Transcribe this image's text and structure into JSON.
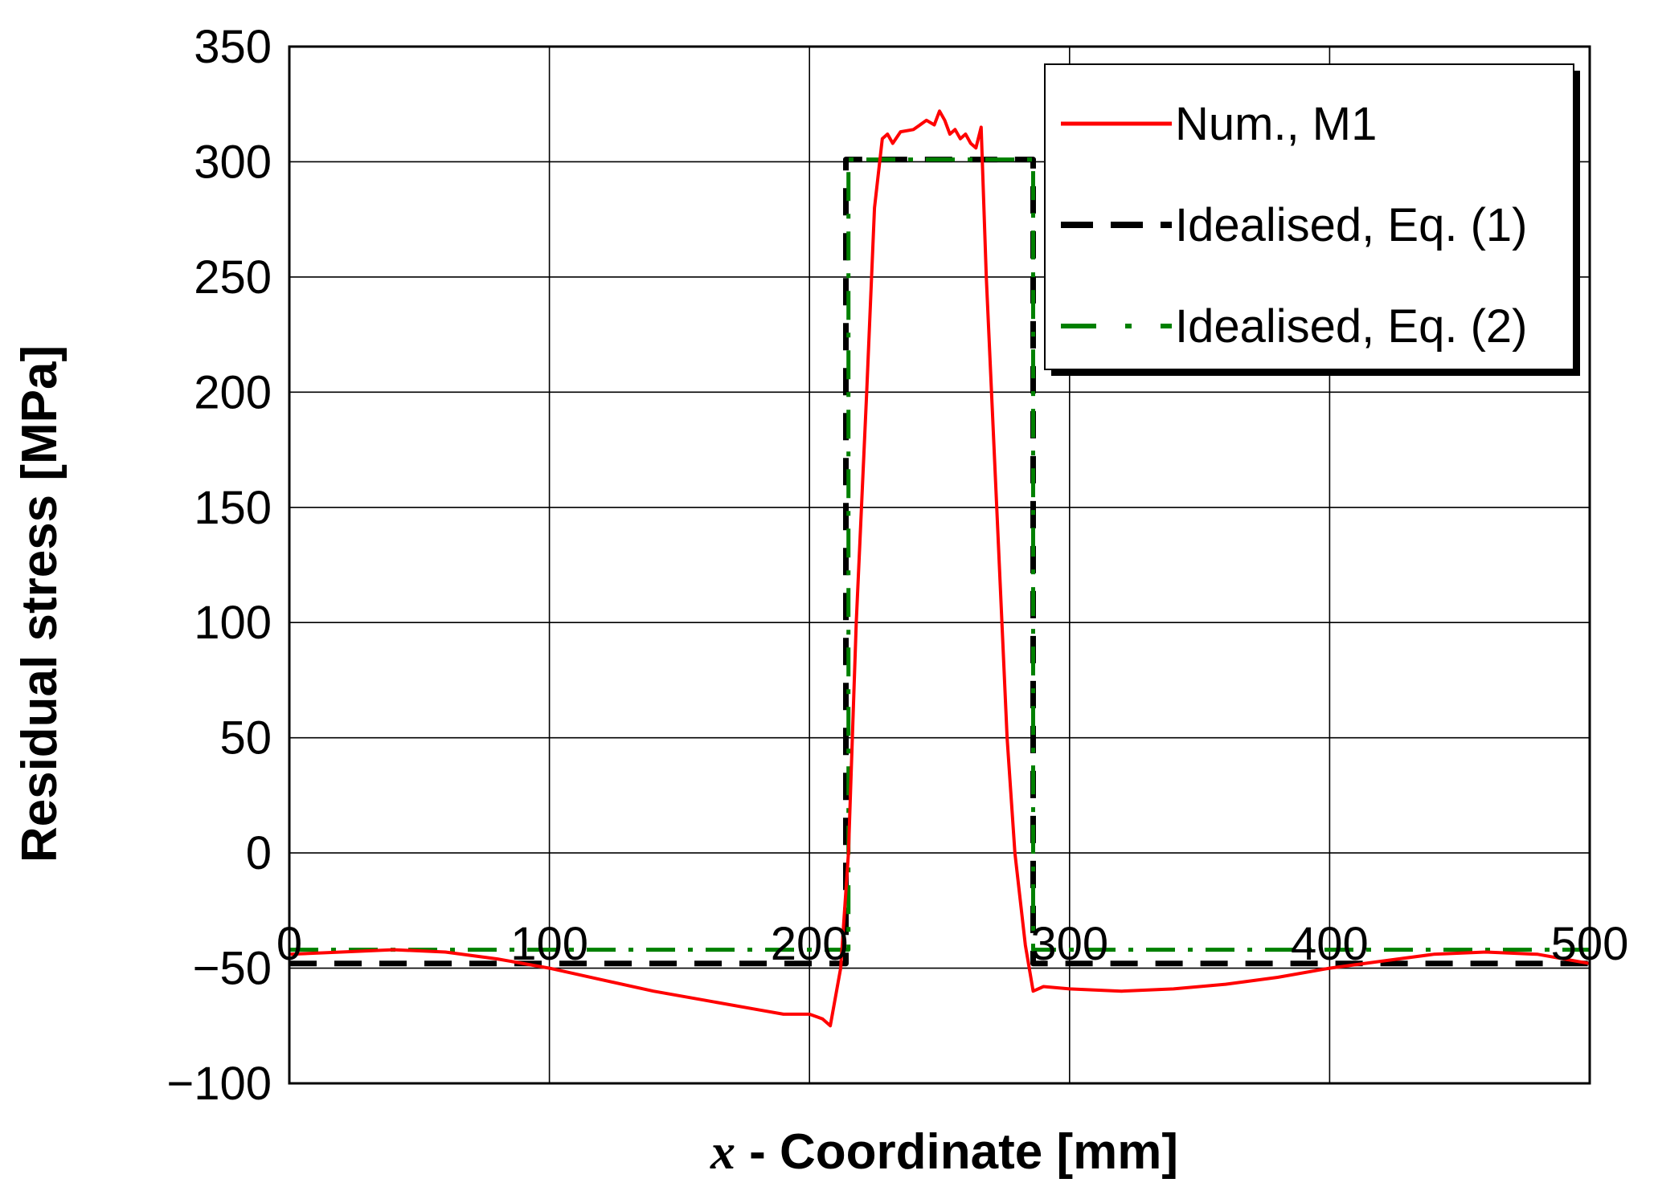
{
  "chart_data": {
    "type": "line",
    "xlabel_var": "x",
    "xlabel": " - Coordinate [mm]",
    "ylabel": "Residual stress [MPa]",
    "xlim": [
      0,
      500
    ],
    "ylim": [
      -100,
      350
    ],
    "x_ticks": [
      "0",
      "100",
      "200",
      "300",
      "400",
      "500"
    ],
    "y_ticks": [
      "350",
      "300",
      "250",
      "200",
      "150",
      "100",
      "50",
      "0",
      "−50",
      "−100"
    ],
    "grid": true,
    "legend_position": "top-right",
    "series": [
      {
        "name": "Num., M1",
        "color": "#ff0000",
        "style": "solid",
        "points": [
          [
            0,
            -44
          ],
          [
            20,
            -43
          ],
          [
            40,
            -42
          ],
          [
            60,
            -43
          ],
          [
            80,
            -46
          ],
          [
            100,
            -50
          ],
          [
            120,
            -55
          ],
          [
            140,
            -60
          ],
          [
            160,
            -64
          ],
          [
            180,
            -68
          ],
          [
            190,
            -70
          ],
          [
            200,
            -70
          ],
          [
            205,
            -72
          ],
          [
            208,
            -75
          ],
          [
            212,
            -50
          ],
          [
            215,
            0
          ],
          [
            218,
            100
          ],
          [
            222,
            200
          ],
          [
            225,
            280
          ],
          [
            228,
            310
          ],
          [
            230,
            312
          ],
          [
            232,
            308
          ],
          [
            235,
            313
          ],
          [
            240,
            314
          ],
          [
            245,
            318
          ],
          [
            248,
            316
          ],
          [
            250,
            322
          ],
          [
            252,
            318
          ],
          [
            254,
            312
          ],
          [
            256,
            314
          ],
          [
            258,
            310
          ],
          [
            260,
            312
          ],
          [
            262,
            308
          ],
          [
            264,
            306
          ],
          [
            266,
            315
          ],
          [
            268,
            250
          ],
          [
            272,
            150
          ],
          [
            276,
            50
          ],
          [
            279,
            0
          ],
          [
            283,
            -40
          ],
          [
            286,
            -60
          ],
          [
            290,
            -58
          ],
          [
            300,
            -59
          ],
          [
            320,
            -60
          ],
          [
            340,
            -59
          ],
          [
            360,
            -57
          ],
          [
            380,
            -54
          ],
          [
            400,
            -50
          ],
          [
            420,
            -47
          ],
          [
            440,
            -44
          ],
          [
            460,
            -43
          ],
          [
            480,
            -44
          ],
          [
            500,
            -48
          ]
        ]
      },
      {
        "name": "Idealised, Eq. (1)",
        "color": "#000000",
        "style": "dashed",
        "points": [
          [
            0,
            -48
          ],
          [
            214,
            -48
          ],
          [
            214,
            301
          ],
          [
            286,
            301
          ],
          [
            286,
            -48
          ],
          [
            500,
            -48
          ]
        ]
      },
      {
        "name": "Idealised, Eq. (2)",
        "color": "#008000",
        "style": "dash-dot",
        "points": [
          [
            0,
            -42
          ],
          [
            215,
            -42
          ],
          [
            215,
            301
          ],
          [
            286,
            301
          ],
          [
            286,
            -42
          ],
          [
            500,
            -42
          ]
        ]
      }
    ]
  }
}
